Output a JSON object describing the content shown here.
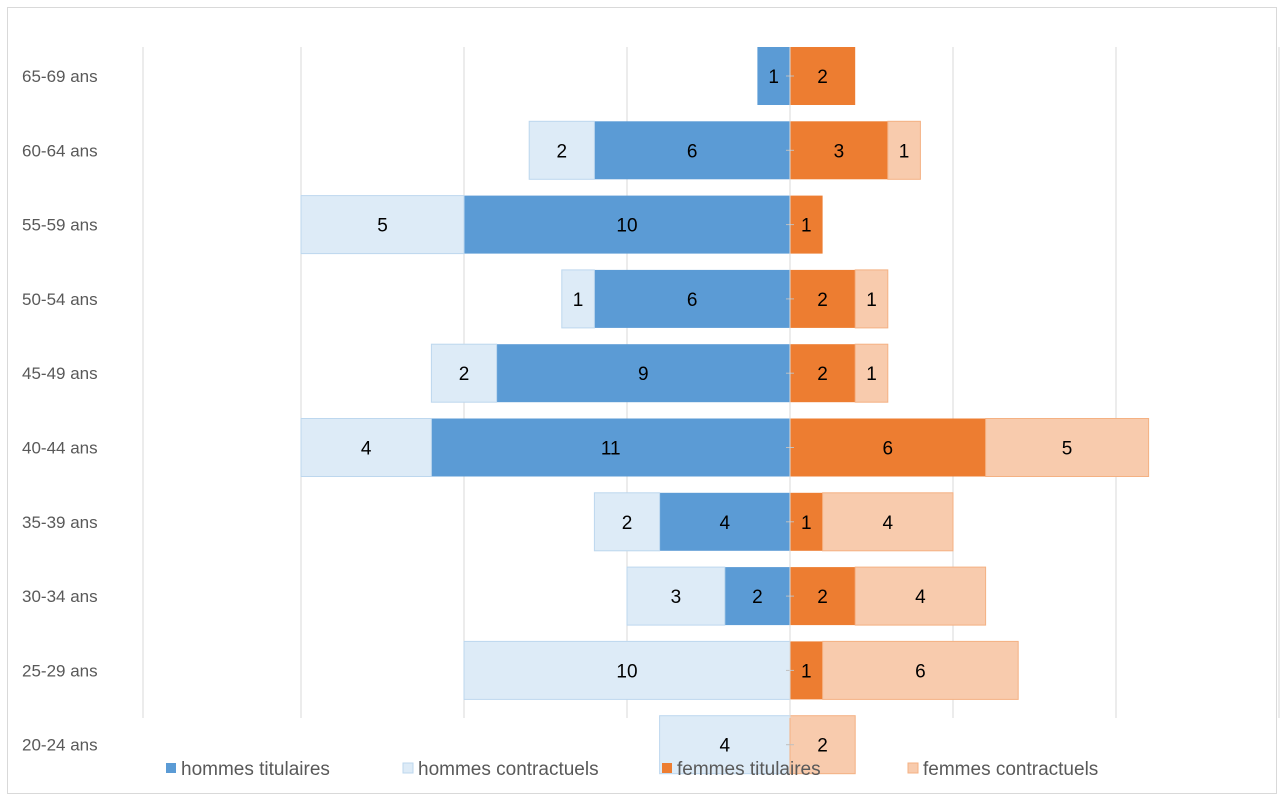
{
  "chart_data": {
    "type": "bar",
    "orientation": "horizontal",
    "layout": "population-pyramid",
    "title": "",
    "categories": [
      "65-69 ans",
      "60-64 ans",
      "55-59 ans",
      "50-54 ans",
      "45-49 ans",
      "40-44 ans",
      "35-39 ans",
      "30-34 ans",
      "25-29 ans",
      "20-24 ans"
    ],
    "series": [
      {
        "name": "hommes titulaires",
        "side": "left",
        "color": "#5b9bd5",
        "values": [
          1,
          6,
          10,
          6,
          9,
          11,
          4,
          2,
          0,
          0
        ]
      },
      {
        "name": "hommes contractuels",
        "side": "left",
        "color": "#ddebf7",
        "values": [
          0,
          2,
          5,
          1,
          2,
          4,
          2,
          3,
          10,
          4
        ]
      },
      {
        "name": "femmes titulaires",
        "side": "right",
        "color": "#ed7d31",
        "values": [
          2,
          3,
          1,
          2,
          2,
          6,
          1,
          2,
          1,
          0
        ]
      },
      {
        "name": "femmes contractuels",
        "side": "right",
        "color": "#f8cbad",
        "values": [
          0,
          1,
          0,
          1,
          1,
          5,
          4,
          4,
          6,
          2
        ]
      }
    ],
    "xlim": [
      -15,
      15
    ],
    "gridlines": "vertical",
    "legend": "bottom"
  }
}
